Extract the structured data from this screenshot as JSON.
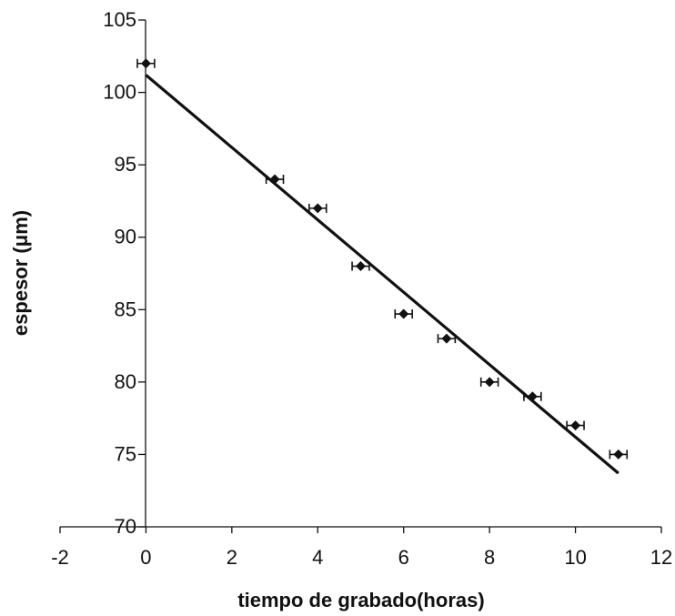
{
  "chart_data": {
    "type": "scatter",
    "title": "",
    "xlabel": "tiempo de grabado(horas)",
    "ylabel": "espesor (μm)",
    "xlim": [
      -2,
      12
    ],
    "ylim": [
      70,
      105
    ],
    "x_ticks": [
      "-2",
      "0",
      "2",
      "4",
      "6",
      "8",
      "10",
      "12"
    ],
    "y_ticks": [
      "70",
      "75",
      "80",
      "85",
      "90",
      "95",
      "100",
      "105"
    ],
    "grid": false,
    "legend": "none",
    "series": [
      {
        "marker": "diamond",
        "x_error": 0.2,
        "points": [
          {
            "x": 0,
            "y": 102
          },
          {
            "x": 3,
            "y": 94
          },
          {
            "x": 4,
            "y": 92
          },
          {
            "x": 5,
            "y": 88
          },
          {
            "x": 6,
            "y": 84.7
          },
          {
            "x": 7,
            "y": 83
          },
          {
            "x": 8,
            "y": 80
          },
          {
            "x": 9,
            "y": 79
          },
          {
            "x": 10,
            "y": 77
          },
          {
            "x": 11,
            "y": 75
          }
        ]
      }
    ],
    "fit_line": {
      "x": [
        0,
        11
      ],
      "y": [
        101.2,
        73.7
      ]
    },
    "colors": {
      "marker": "#111111",
      "line": "#111111",
      "axis": "#111111"
    }
  }
}
